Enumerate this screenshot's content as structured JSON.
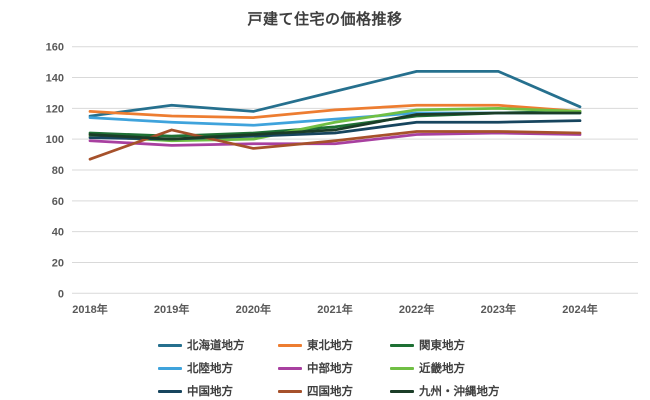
{
  "chart_data": {
    "type": "line",
    "title": "戸建て住宅の価格推移",
    "categories": [
      "2018年",
      "2019年",
      "2020年",
      "2021年",
      "2022年",
      "2023年",
      "2024年"
    ],
    "series": [
      {
        "name": "北海道地方",
        "color": "#26708E",
        "values": [
          115,
          122,
          118,
          131,
          144,
          144,
          121
        ]
      },
      {
        "name": "東北地方",
        "color": "#ED7D31",
        "values": [
          118,
          115,
          114,
          119,
          122,
          122,
          118
        ]
      },
      {
        "name": "関東地方",
        "color": "#1E7034",
        "values": [
          104,
          102,
          104,
          108,
          115,
          117,
          118
        ]
      },
      {
        "name": "北陸地方",
        "color": "#3FA3DC",
        "values": [
          114,
          111,
          109,
          113,
          117,
          117,
          117
        ]
      },
      {
        "name": "中部地方",
        "color": "#A840A0",
        "values": [
          99,
          96,
          97,
          97,
          103,
          104,
          103
        ]
      },
      {
        "name": "近畿地方",
        "color": "#70BF44",
        "values": [
          102,
          99,
          100,
          111,
          119,
          120,
          118
        ]
      },
      {
        "name": "中国地方",
        "color": "#17455E",
        "values": [
          101,
          100,
          102,
          104,
          111,
          111,
          112
        ]
      },
      {
        "name": "四国地方",
        "color": "#A6512B",
        "values": [
          87,
          106,
          94,
          99,
          105,
          105,
          104
        ]
      },
      {
        "name": "九州・沖縄地方",
        "color": "#1B3D28",
        "values": [
          103,
          100,
          103,
          106,
          116,
          117,
          117
        ]
      }
    ],
    "ylim": [
      0,
      160
    ],
    "yticks": [
      0,
      20,
      40,
      60,
      80,
      100,
      120,
      140,
      160
    ],
    "xlabel": "",
    "ylabel": "",
    "grid": "horizontal",
    "legend_position": "bottom",
    "style": {
      "gridline_color": "#D9D9D9",
      "axis_text_color": "#595959",
      "title_color": "#3F3F3F",
      "background": "#FFFFFF"
    }
  }
}
